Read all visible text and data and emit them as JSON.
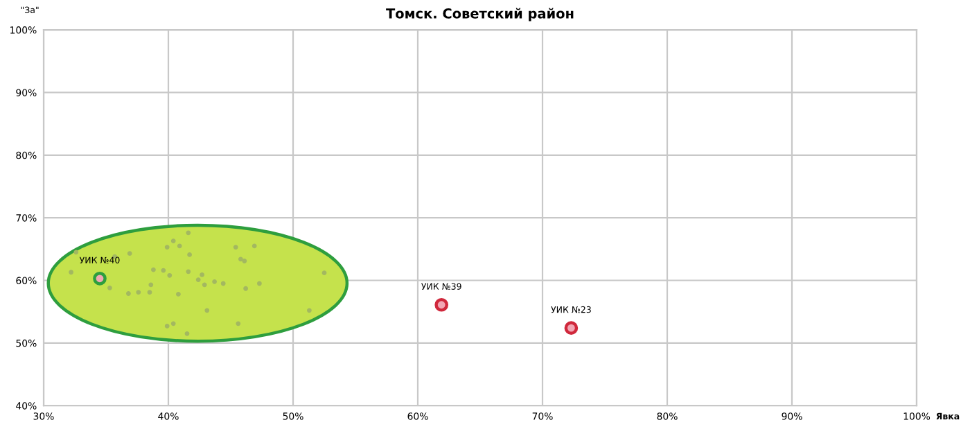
{
  "chart_data": {
    "type": "scatter",
    "title": "Томск. Советский район",
    "xlabel": "Явка",
    "ylabel": "\"За\"",
    "xlim": [
      30,
      100
    ],
    "ylim": [
      40,
      100
    ],
    "xticks": [
      {
        "value": 30,
        "label": "30%"
      },
      {
        "value": 40,
        "label": "40%"
      },
      {
        "value": 50,
        "label": "50%"
      },
      {
        "value": 60,
        "label": "60%"
      },
      {
        "value": 70,
        "label": "70%"
      },
      {
        "value": 80,
        "label": "80%"
      },
      {
        "value": 90,
        "label": "90%"
      },
      {
        "value": 100,
        "label": "100%"
      }
    ],
    "yticks": [
      {
        "value": 40,
        "label": "40%"
      },
      {
        "value": 50,
        "label": "50%"
      },
      {
        "value": 60,
        "label": "60%"
      },
      {
        "value": 70,
        "label": "70%"
      },
      {
        "value": 80,
        "label": "80%"
      },
      {
        "value": 90,
        "label": "90%"
      },
      {
        "value": 100,
        "label": "100%"
      }
    ],
    "grid": true,
    "marker": "circle",
    "series": [
      {
        "color": "#a3b860",
        "x": [
          32.6,
          32.2,
          35.7,
          36.9,
          35.3,
          36.8,
          37.6,
          38.5,
          38.6,
          38.8,
          39.6,
          39.9,
          40.1,
          40.4,
          40.9,
          41.6,
          41.7,
          41.6,
          40.8,
          42.4,
          42.7,
          42.9,
          43.1,
          43.7,
          44.4,
          39.9,
          40.4,
          41.5,
          45.4,
          45.8,
          46.1,
          46.9,
          46.2,
          47.3,
          45.6,
          51.3,
          52.5
        ],
        "values": [
          64.5,
          61.3,
          63.8,
          64.3,
          58.8,
          57.9,
          58.1,
          58.1,
          59.3,
          61.7,
          61.6,
          65.3,
          60.8,
          66.3,
          65.5,
          67.6,
          64.1,
          61.4,
          57.8,
          60.1,
          60.9,
          59.3,
          55.2,
          59.8,
          59.5,
          52.7,
          53.1,
          51.5,
          65.3,
          63.4,
          63.1,
          65.5,
          58.7,
          59.5,
          53.1,
          55.2,
          61.2
        ]
      },
      {
        "type": "scatter",
        "x": [
          34.5,
          61.9,
          72.3
        ],
        "values": [
          60.3,
          56.1,
          52.4
        ],
        "colors": [
          "#2e9e3e",
          "#d0283c",
          "#d0283c"
        ]
      }
    ],
    "annotations": [
      {
        "text": "УИК №40",
        "x": 34.5,
        "y": 60.3
      },
      {
        "text": "УИК №39",
        "x": 61.9,
        "y": 56.1
      },
      {
        "text": "УИК №23",
        "x": 72.3,
        "y": 52.4
      }
    ]
  }
}
